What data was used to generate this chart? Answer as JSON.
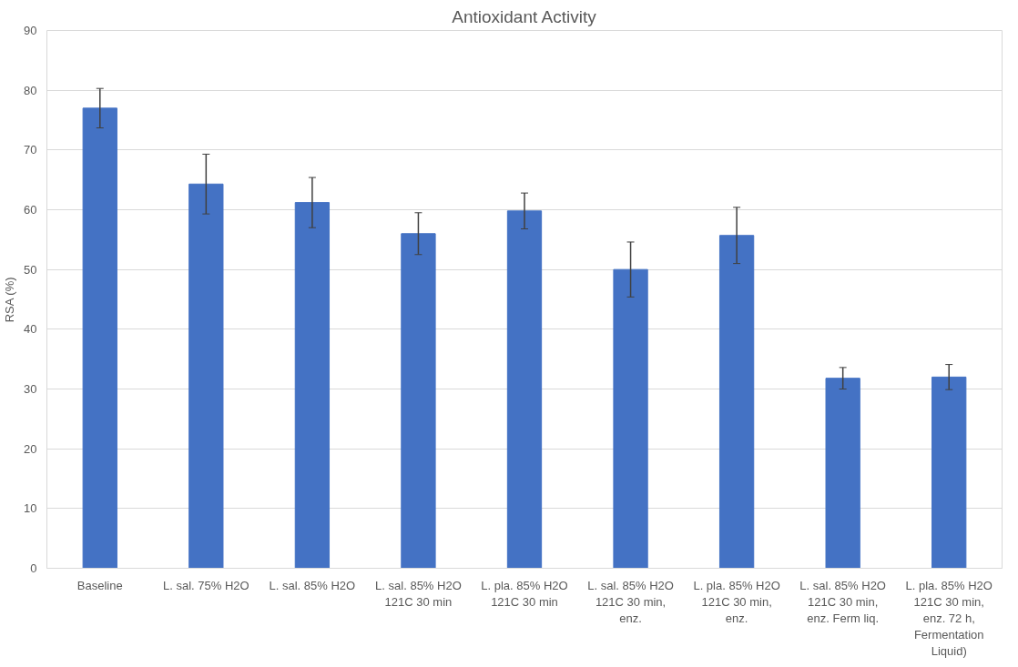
{
  "chart_data": {
    "type": "bar",
    "title": "Antioxidant Activity",
    "ylabel": "RSA (%)",
    "categories": [
      "Baseline",
      "L. sal. 75% H2O",
      "L. sal. 85% H2O",
      "L. sal. 85% H2O 121C 30 min",
      "L. pla. 85% H2O 121C 30 min",
      "L. sal. 85% H2O 121C 30 min, enz.",
      "L. pla. 85% H2O 121C 30 min, enz.",
      "L. sal. 85% H2O 121C 30 min, enz. Ferm liq.",
      "L. pla. 85% H2O 121C 30 min, enz. 72 h, Fermentation Liquid)"
    ],
    "values": [
      77.0,
      64.3,
      61.2,
      56.0,
      59.8,
      50.0,
      55.7,
      31.8,
      32.0
    ],
    "errors": [
      3.3,
      5.0,
      4.2,
      3.5,
      3.0,
      4.6,
      4.7,
      1.8,
      2.1
    ],
    "color": "#4472c4",
    "ylim": [
      0,
      90
    ],
    "yticks": [
      0,
      10,
      20,
      30,
      40,
      50,
      60,
      70,
      80,
      90
    ],
    "grid": "y"
  }
}
